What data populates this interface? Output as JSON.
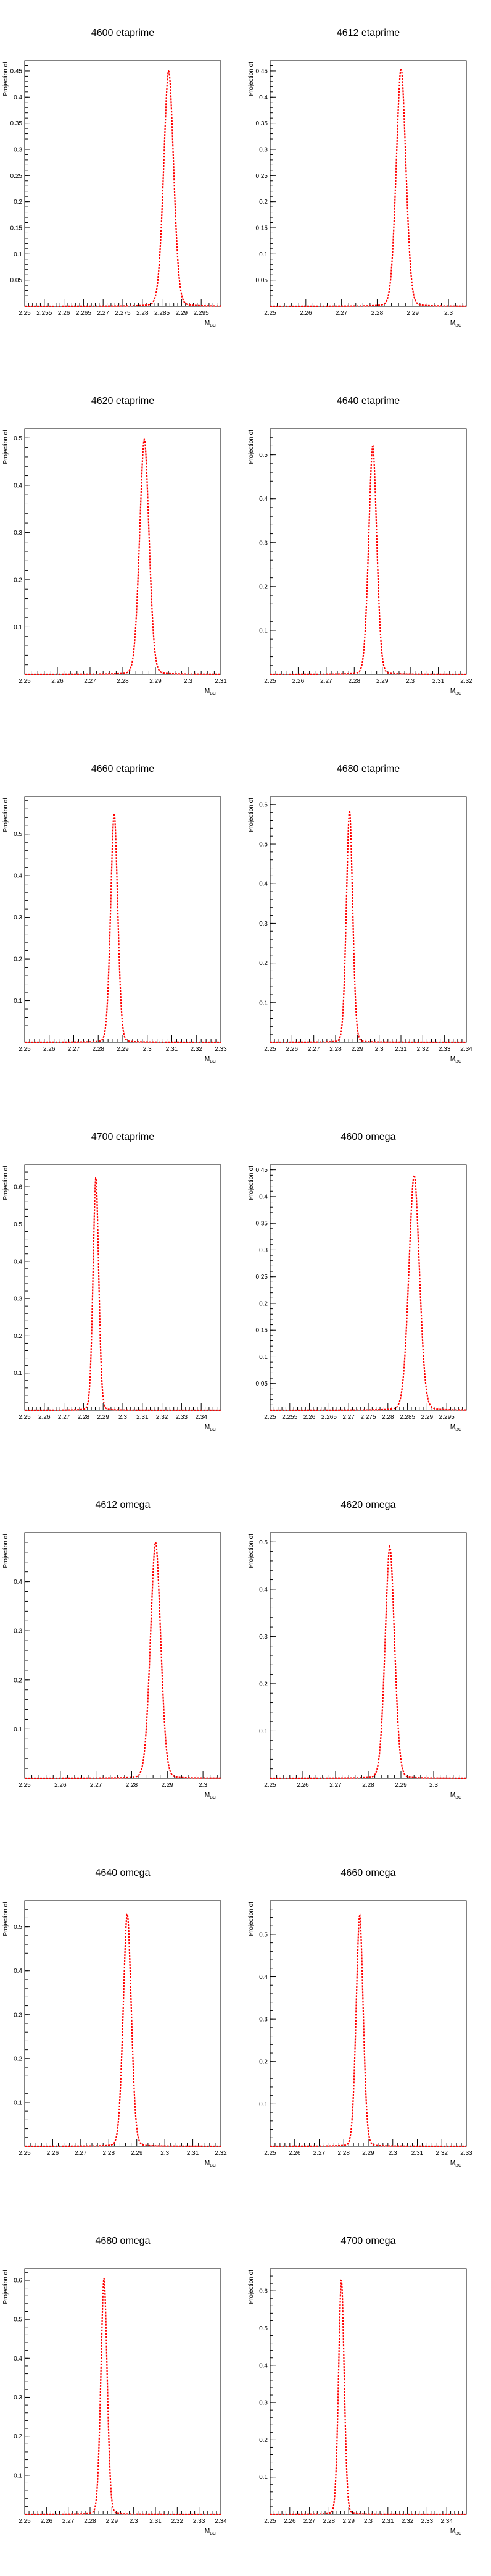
{
  "chart_data": [
    {
      "type": "line",
      "title": "4600 etaprime",
      "xlabel": "M",
      "xlabel_sub": "BC",
      "ylabel": "Projection of",
      "xlim": [
        2.25,
        2.3
      ],
      "ylim": [
        0,
        0.47
      ],
      "xticks": [
        2.25,
        2.255,
        2.26,
        2.265,
        2.27,
        2.275,
        2.28,
        2.285,
        2.29,
        2.295
      ],
      "xtick_labels": [
        "2.25",
        "2.255",
        "2.26",
        "2.265",
        "2.27",
        "2.275",
        "2.28",
        "2.285",
        "2.29",
        "2.295"
      ],
      "yticks": [
        0.05,
        0.1,
        0.15,
        0.2,
        0.25,
        0.3,
        0.35,
        0.4,
        0.45
      ],
      "ytick_labels": [
        "0.05",
        "0.1",
        "0.15",
        "0.2",
        "0.25",
        "0.3",
        "0.35",
        "0.4",
        "0.45"
      ],
      "series": [
        {
          "peak_x": 2.2867,
          "peak_y": 0.45,
          "width": 0.0013,
          "tail": 0.0022
        }
      ]
    },
    {
      "type": "line",
      "title": "4612 etaprime",
      "xlabel": "M",
      "xlabel_sub": "BC",
      "ylabel": "Projection of",
      "xlim": [
        2.25,
        2.305
      ],
      "ylim": [
        0,
        0.47
      ],
      "xticks": [
        2.25,
        2.26,
        2.27,
        2.28,
        2.29,
        2.3
      ],
      "xtick_labels": [
        "2.25",
        "2.26",
        "2.27",
        "2.28",
        "2.29",
        "2.3"
      ],
      "yticks": [
        0.05,
        0.1,
        0.15,
        0.2,
        0.25,
        0.3,
        0.35,
        0.4,
        0.45
      ],
      "ytick_labels": [
        "0.05",
        "0.1",
        "0.15",
        "0.2",
        "0.25",
        "0.3",
        "0.35",
        "0.4",
        "0.45"
      ],
      "series": [
        {
          "peak_x": 2.2867,
          "peak_y": 0.455,
          "width": 0.0014,
          "tail": 0.0022
        }
      ]
    },
    {
      "type": "line",
      "title": "4620 etaprime",
      "xlabel": "M",
      "xlabel_sub": "BC",
      "ylabel": "Projection of",
      "xlim": [
        2.25,
        2.31
      ],
      "ylim": [
        0,
        0.52
      ],
      "xticks": [
        2.25,
        2.26,
        2.27,
        2.28,
        2.29,
        2.3,
        2.31
      ],
      "xtick_labels": [
        "2.25",
        "2.26",
        "2.27",
        "2.28",
        "2.29",
        "2.3",
        "2.31"
      ],
      "yticks": [
        0.1,
        0.2,
        0.3,
        0.4,
        0.5
      ],
      "ytick_labels": [
        "0.1",
        "0.2",
        "0.3",
        "0.4",
        "0.5"
      ],
      "series": [
        {
          "peak_x": 2.2866,
          "peak_y": 0.497,
          "width": 0.0015,
          "tail": 0.0022
        }
      ]
    },
    {
      "type": "line",
      "title": "4640 etaprime",
      "xlabel": "M",
      "xlabel_sub": "BC",
      "ylabel": "Projection of",
      "xlim": [
        2.25,
        2.32
      ],
      "ylim": [
        0,
        0.56
      ],
      "xticks": [
        2.25,
        2.26,
        2.27,
        2.28,
        2.29,
        2.3,
        2.31,
        2.32
      ],
      "xtick_labels": [
        "2.25",
        "2.26",
        "2.27",
        "2.28",
        "2.29",
        "2.3",
        "2.31",
        "2.32"
      ],
      "yticks": [
        0.1,
        0.2,
        0.3,
        0.4,
        0.5
      ],
      "ytick_labels": [
        "0.1",
        "0.2",
        "0.3",
        "0.4",
        "0.5"
      ],
      "series": [
        {
          "peak_x": 2.2866,
          "peak_y": 0.52,
          "width": 0.0015,
          "tail": 0.0022
        }
      ]
    },
    {
      "type": "line",
      "title": "4660 etaprime",
      "xlabel": "M",
      "xlabel_sub": "BC",
      "ylabel": "Projection of",
      "xlim": [
        2.25,
        2.33
      ],
      "ylim": [
        0,
        0.59
      ],
      "xticks": [
        2.25,
        2.26,
        2.27,
        2.28,
        2.29,
        2.3,
        2.31,
        2.32,
        2.33
      ],
      "xtick_labels": [
        "2.25",
        "2.26",
        "2.27",
        "2.28",
        "2.29",
        "2.3",
        "2.31",
        "2.32",
        "2.33"
      ],
      "yticks": [
        0.1,
        0.2,
        0.3,
        0.4,
        0.5
      ],
      "ytick_labels": [
        "0.1",
        "0.2",
        "0.3",
        "0.4",
        "0.5"
      ],
      "series": [
        {
          "peak_x": 2.2865,
          "peak_y": 0.55,
          "width": 0.0015,
          "tail": 0.0022
        }
      ]
    },
    {
      "type": "line",
      "title": "4680 etaprime",
      "xlabel": "M",
      "xlabel_sub": "BC",
      "ylabel": "Projection of",
      "xlim": [
        2.25,
        2.34
      ],
      "ylim": [
        0,
        0.62
      ],
      "xticks": [
        2.25,
        2.26,
        2.27,
        2.28,
        2.29,
        2.3,
        2.31,
        2.32,
        2.33,
        2.34
      ],
      "xtick_labels": [
        "2.25",
        "2.26",
        "2.27",
        "2.28",
        "2.29",
        "2.3",
        "2.31",
        "2.32",
        "2.33",
        "2.34"
      ],
      "yticks": [
        0.1,
        0.2,
        0.3,
        0.4,
        0.5,
        0.6
      ],
      "ytick_labels": [
        "0.1",
        "0.2",
        "0.3",
        "0.4",
        "0.5",
        "0.6"
      ],
      "series": [
        {
          "peak_x": 2.2864,
          "peak_y": 0.585,
          "width": 0.0015,
          "tail": 0.0022
        }
      ]
    },
    {
      "type": "line",
      "title": "4700 etaprime",
      "xlabel": "M",
      "xlabel_sub": "BC",
      "ylabel": "Projection of",
      "xlim": [
        2.25,
        2.35
      ],
      "ylim": [
        0,
        0.66
      ],
      "xticks": [
        2.25,
        2.26,
        2.27,
        2.28,
        2.29,
        2.3,
        2.31,
        2.32,
        2.33,
        2.34
      ],
      "xtick_labels": [
        "2.25",
        "2.26",
        "2.27",
        "2.28",
        "2.29",
        "2.3",
        "2.31",
        "2.32",
        "2.33",
        "2.34"
      ],
      "yticks": [
        0.1,
        0.2,
        0.3,
        0.4,
        0.5,
        0.6
      ],
      "ytick_labels": [
        "0.1",
        "0.2",
        "0.3",
        "0.4",
        "0.5",
        "0.6"
      ],
      "series": [
        {
          "peak_x": 2.2863,
          "peak_y": 0.625,
          "width": 0.0015,
          "tail": 0.0022
        }
      ]
    },
    {
      "type": "line",
      "title": "4600 omega",
      "xlabel": "M",
      "xlabel_sub": "BC",
      "ylabel": "Projection of",
      "xlim": [
        2.25,
        2.3
      ],
      "ylim": [
        0,
        0.46
      ],
      "xticks": [
        2.25,
        2.255,
        2.26,
        2.265,
        2.27,
        2.275,
        2.28,
        2.285,
        2.29,
        2.295
      ],
      "xtick_labels": [
        "2.25",
        "2.255",
        "2.26",
        "2.265",
        "2.27",
        "2.275",
        "2.28",
        "2.285",
        "2.29",
        "2.295"
      ],
      "yticks": [
        0.05,
        0.1,
        0.15,
        0.2,
        0.25,
        0.3,
        0.35,
        0.4,
        0.45
      ],
      "ytick_labels": [
        "0.05",
        "0.1",
        "0.15",
        "0.2",
        "0.25",
        "0.3",
        "0.35",
        "0.4",
        "0.45"
      ],
      "series": [
        {
          "peak_x": 2.2867,
          "peak_y": 0.44,
          "width": 0.0014,
          "tail": 0.0022
        }
      ]
    },
    {
      "type": "line",
      "title": "4612 omega",
      "xlabel": "M",
      "xlabel_sub": "BC",
      "ylabel": "Projection of",
      "xlim": [
        2.25,
        2.305
      ],
      "ylim": [
        0,
        0.5
      ],
      "xticks": [
        2.25,
        2.26,
        2.27,
        2.28,
        2.29,
        2.3
      ],
      "xtick_labels": [
        "2.25",
        "2.26",
        "2.27",
        "2.28",
        "2.29",
        "2.3"
      ],
      "yticks": [
        0.1,
        0.2,
        0.3,
        0.4
      ],
      "ytick_labels": [
        "0.1",
        "0.2",
        "0.3",
        "0.4"
      ],
      "series": [
        {
          "peak_x": 2.2867,
          "peak_y": 0.48,
          "width": 0.0015,
          "tail": 0.0022
        }
      ]
    },
    {
      "type": "line",
      "title": "4620 omega",
      "xlabel": "M",
      "xlabel_sub": "BC",
      "ylabel": "Projection of",
      "xlim": [
        2.25,
        2.31
      ],
      "ylim": [
        0,
        0.52
      ],
      "xticks": [
        2.25,
        2.26,
        2.27,
        2.28,
        2.29,
        2.3
      ],
      "xtick_labels": [
        "2.25",
        "2.26",
        "2.27",
        "2.28",
        "2.29",
        "2.3"
      ],
      "yticks": [
        0.1,
        0.2,
        0.3,
        0.4,
        0.5
      ],
      "ytick_labels": [
        "0.1",
        "0.2",
        "0.3",
        "0.4",
        "0.5"
      ],
      "series": [
        {
          "peak_x": 2.2866,
          "peak_y": 0.49,
          "width": 0.0015,
          "tail": 0.0022
        }
      ]
    },
    {
      "type": "line",
      "title": "4640 omega",
      "xlabel": "M",
      "xlabel_sub": "BC",
      "ylabel": "Projection of",
      "xlim": [
        2.25,
        2.32
      ],
      "ylim": [
        0,
        0.56
      ],
      "xticks": [
        2.25,
        2.26,
        2.27,
        2.28,
        2.29,
        2.3,
        2.31,
        2.32
      ],
      "xtick_labels": [
        "2.25",
        "2.26",
        "2.27",
        "2.28",
        "2.29",
        "2.3",
        "2.31",
        "2.32"
      ],
      "yticks": [
        0.1,
        0.2,
        0.3,
        0.4,
        0.5
      ],
      "ytick_labels": [
        "0.1",
        "0.2",
        "0.3",
        "0.4",
        "0.5"
      ],
      "series": [
        {
          "peak_x": 2.2866,
          "peak_y": 0.53,
          "width": 0.0015,
          "tail": 0.0022
        }
      ]
    },
    {
      "type": "line",
      "title": "4660 omega",
      "xlabel": "M",
      "xlabel_sub": "BC",
      "ylabel": "Projection of",
      "xlim": [
        2.25,
        2.33
      ],
      "ylim": [
        0,
        0.58
      ],
      "xticks": [
        2.25,
        2.26,
        2.27,
        2.28,
        2.29,
        2.3,
        2.31,
        2.32,
        2.33
      ],
      "xtick_labels": [
        "2.25",
        "2.26",
        "2.27",
        "2.28",
        "2.29",
        "2.3",
        "2.31",
        "2.32",
        "2.33"
      ],
      "yticks": [
        0.1,
        0.2,
        0.3,
        0.4,
        0.5
      ],
      "ytick_labels": [
        "0.1",
        "0.2",
        "0.3",
        "0.4",
        "0.5"
      ],
      "series": [
        {
          "peak_x": 2.2865,
          "peak_y": 0.545,
          "width": 0.0015,
          "tail": 0.0022
        }
      ]
    },
    {
      "type": "line",
      "title": "4680 omega",
      "xlabel": "M",
      "xlabel_sub": "BC",
      "ylabel": "Projection of",
      "xlim": [
        2.25,
        2.34
      ],
      "ylim": [
        0,
        0.63
      ],
      "xticks": [
        2.25,
        2.26,
        2.27,
        2.28,
        2.29,
        2.3,
        2.31,
        2.32,
        2.33,
        2.34
      ],
      "xtick_labels": [
        "2.25",
        "2.26",
        "2.27",
        "2.28",
        "2.29",
        "2.3",
        "2.31",
        "2.32",
        "2.33",
        "2.34"
      ],
      "yticks": [
        0.1,
        0.2,
        0.3,
        0.4,
        0.5,
        0.6
      ],
      "ytick_labels": [
        "0.1",
        "0.2",
        "0.3",
        "0.4",
        "0.5",
        "0.6"
      ],
      "series": [
        {
          "peak_x": 2.2864,
          "peak_y": 0.605,
          "width": 0.0015,
          "tail": 0.0022
        }
      ]
    },
    {
      "type": "line",
      "title": "4700 omega",
      "xlabel": "M",
      "xlabel_sub": "BC",
      "ylabel": "Projection of",
      "xlim": [
        2.25,
        2.35
      ],
      "ylim": [
        0,
        0.66
      ],
      "xticks": [
        2.25,
        2.26,
        2.27,
        2.28,
        2.29,
        2.3,
        2.31,
        2.32,
        2.33,
        2.34
      ],
      "xtick_labels": [
        "2.25",
        "2.26",
        "2.27",
        "2.28",
        "2.29",
        "2.3",
        "2.31",
        "2.32",
        "2.33",
        "2.34"
      ],
      "yticks": [
        0.1,
        0.2,
        0.3,
        0.4,
        0.5,
        0.6
      ],
      "ytick_labels": [
        "0.1",
        "0.2",
        "0.3",
        "0.4",
        "0.5",
        "0.6"
      ],
      "series": [
        {
          "peak_x": 2.2863,
          "peak_y": 0.63,
          "width": 0.0015,
          "tail": 0.0022
        }
      ]
    }
  ],
  "style": {
    "curve_color": "#ff0000",
    "axis_color": "#000000",
    "background": "#ffffff"
  }
}
